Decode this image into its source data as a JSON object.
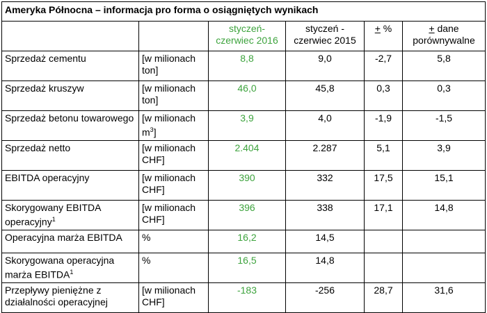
{
  "title": "Ameryka Północna – informacja pro forma o osiągniętych wynikach",
  "header": {
    "col_2016": "styczeń-czerwiec 2016",
    "col_2015": "styczeń - czerwiec 2015",
    "col_pct_sign": "+",
    "col_pct_rest": " %",
    "col_lfl_sign": "+",
    "col_lfl_rest": " dane porównywalne"
  },
  "rows": [
    {
      "label": "Sprzedaż cementu",
      "label_sup": "",
      "unit": "[w milionach ton]",
      "unit_sup": "",
      "unit_tail": "",
      "v2016": "8,8",
      "v2015": "9,0",
      "pct": "-2,7",
      "lfl": "5,8"
    },
    {
      "label": "Sprzedaż kruszyw",
      "label_sup": "",
      "unit": "[w milionach ton]",
      "unit_sup": "",
      "unit_tail": "",
      "v2016": "46,0",
      "v2015": "45,8",
      "pct": "0,3",
      "lfl": "0,3"
    },
    {
      "label": "Sprzedaż betonu towarowego",
      "label_sup": "",
      "unit": "[w milionach m",
      "unit_sup": "3",
      "unit_tail": "]",
      "v2016": "3,9",
      "v2015": "4,0",
      "pct": "-1,9",
      "lfl": "-1,5"
    },
    {
      "label": "Sprzedaż netto",
      "label_sup": "",
      "unit": "[w milionach CHF]",
      "unit_sup": "",
      "unit_tail": "",
      "v2016": "2.404",
      "v2015": "2.287",
      "pct": "5,1",
      "lfl": "3,9"
    },
    {
      "label": "EBITDA operacyjny",
      "label_sup": "",
      "unit": "[w milionach CHF]",
      "unit_sup": "",
      "unit_tail": "",
      "v2016": "390",
      "v2015": "332",
      "pct": "17,5",
      "lfl": "15,1"
    },
    {
      "label": "Skorygowany EBITDA operacyjny",
      "label_sup": "1",
      "unit": "[w milionach CHF]",
      "unit_sup": "",
      "unit_tail": "",
      "v2016": "396",
      "v2015": "338",
      "pct": "17,1",
      "lfl": "14,8"
    },
    {
      "label": "Operacyjna marża EBITDA",
      "label_sup": "",
      "unit": "%",
      "unit_sup": "",
      "unit_tail": "",
      "v2016": "16,2",
      "v2015": "14,5",
      "pct": "",
      "lfl": ""
    },
    {
      "label": "Skorygowana operacyjna marża EBITDA",
      "label_sup": "1",
      "unit": "%",
      "unit_sup": "",
      "unit_tail": "",
      "v2016": "16,5",
      "v2015": "14,8",
      "pct": "",
      "lfl": ""
    },
    {
      "label": "Przepływy pieniężne z działalności operacyjnej",
      "label_sup": "",
      "unit": "[w milionach CHF]",
      "unit_sup": "",
      "unit_tail": "",
      "v2016": "-183",
      "v2015": "-256",
      "pct": "28,7",
      "lfl": "31,6"
    }
  ]
}
